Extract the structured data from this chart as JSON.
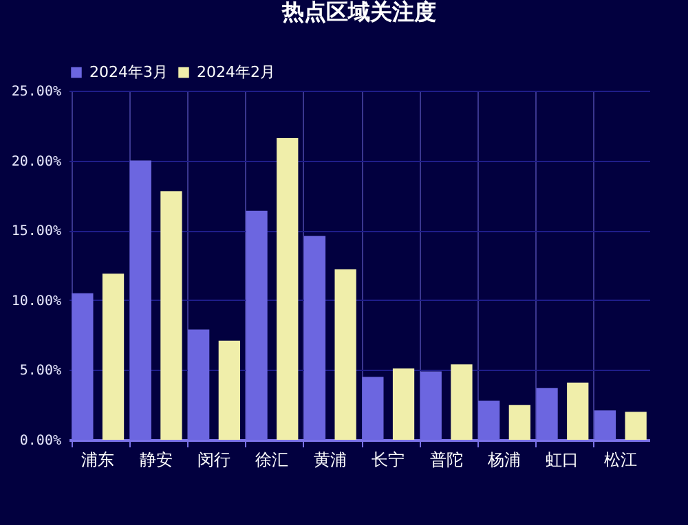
{
  "chart_data": {
    "type": "bar",
    "title": "热点区域关注度",
    "categories": [
      "浦东",
      "静安",
      "闵行",
      "徐汇",
      "黄浦",
      "长宁",
      "普陀",
      "杨浦",
      "虹口",
      "松江"
    ],
    "series": [
      {
        "name": "2024年3月",
        "color": "#6c66e0",
        "values": [
          10.5,
          20.0,
          7.9,
          16.4,
          14.6,
          4.5,
          4.9,
          2.8,
          3.7,
          2.1
        ]
      },
      {
        "name": "2024年2月",
        "color": "#f0eeaa",
        "values": [
          11.9,
          17.8,
          7.1,
          21.6,
          12.2,
          5.1,
          5.4,
          2.5,
          4.1,
          2.0
        ]
      }
    ],
    "ylim": [
      0,
      25
    ],
    "yticks": [
      {
        "value": 0,
        "label": "0.00%"
      },
      {
        "value": 5,
        "label": "5.00%"
      },
      {
        "value": 10,
        "label": "10.00%"
      },
      {
        "value": 15,
        "label": "15.00%"
      },
      {
        "value": 20,
        "label": "20.00%"
      },
      {
        "value": 25,
        "label": "25.00%"
      }
    ],
    "grid": true,
    "legend": "top"
  }
}
